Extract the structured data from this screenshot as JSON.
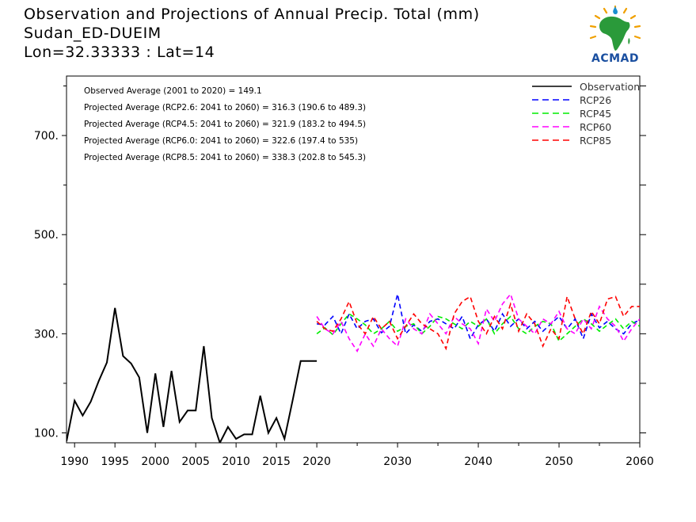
{
  "title": {
    "line1": "Observation and Projections of Annual Precip. Total (mm)",
    "line2": "Sudan_ED-DUEIM",
    "line3": "Lon=32.33333 : Lat=14"
  },
  "logo": {
    "text": "ACMAD"
  },
  "annotations": [
    "Observed Average (2001 to 2020) = 149.1",
    "Projected Average (RCP2.6: 2041 to 2060) = 316.3 (190.6 to 489.3)",
    "Projected Average (RCP4.5: 2041 to 2060) = 321.9 (183.2 to 494.5)",
    "Projected Average (RCP6.0: 2041 to 2060) = 322.6 (197.4 to 535)",
    "Projected Average (RCP8.5: 2041 to 2060) = 338.3 (202.8 to 545.3)"
  ],
  "chart_data": {
    "type": "line",
    "xlim": [
      1989,
      2060
    ],
    "ylim": [
      80,
      820
    ],
    "x_ticks": [
      1990,
      1995,
      2000,
      2005,
      2010,
      2015,
      2020,
      2030,
      2040,
      2050,
      2060
    ],
    "x_minor_ticks": [
      2025,
      2035,
      2045,
      2055
    ],
    "y_ticks": [
      100,
      300,
      500,
      700
    ],
    "y_tick_labels": [
      "100.",
      "300.",
      "500.",
      "700."
    ],
    "y_minor_ticks": [
      200,
      400,
      600,
      800
    ],
    "legend": {
      "position": "top-right"
    },
    "series": [
      {
        "name": "Observation",
        "color": "#000000",
        "style": "solid",
        "x": [
          1989,
          1990,
          1991,
          1992,
          1993,
          1994,
          1995,
          1996,
          1997,
          1998,
          1999,
          2000,
          2001,
          2002,
          2003,
          2004,
          2005,
          2006,
          2007,
          2008,
          2009,
          2010,
          2011,
          2012,
          2013,
          2014,
          2015,
          2016,
          2017,
          2018,
          2019,
          2020
        ],
        "y": [
          83,
          165,
          135,
          163,
          205,
          242,
          352,
          255,
          240,
          212,
          100,
          220,
          112,
          225,
          122,
          145,
          145,
          275,
          130,
          80,
          112,
          88,
          97,
          97,
          175,
          100,
          130,
          88,
          165,
          245,
          245,
          245
        ]
      },
      {
        "name": "RCP26",
        "color": "#0000ff",
        "style": "dashed",
        "x": [
          2020,
          2021,
          2022,
          2023,
          2024,
          2025,
          2026,
          2027,
          2028,
          2029,
          2030,
          2031,
          2032,
          2033,
          2034,
          2035,
          2036,
          2037,
          2038,
          2039,
          2040,
          2041,
          2042,
          2043,
          2044,
          2045,
          2046,
          2047,
          2048,
          2049,
          2050,
          2051,
          2052,
          2053,
          2054,
          2055,
          2056,
          2057,
          2058,
          2059,
          2060
        ],
        "y": [
          320,
          318,
          335,
          300,
          340,
          310,
          325,
          330,
          302,
          315,
          380,
          300,
          318,
          305,
          325,
          330,
          320,
          310,
          335,
          290,
          318,
          330,
          305,
          340,
          315,
          330,
          310,
          325,
          305,
          320,
          335,
          310,
          330,
          290,
          340,
          312,
          325,
          310,
          300,
          320,
          328
        ]
      },
      {
        "name": "RCP45",
        "color": "#00ee00",
        "style": "dashed",
        "x": [
          2020,
          2021,
          2022,
          2023,
          2024,
          2025,
          2026,
          2027,
          2028,
          2029,
          2030,
          2031,
          2032,
          2033,
          2034,
          2035,
          2036,
          2037,
          2038,
          2039,
          2040,
          2041,
          2042,
          2043,
          2044,
          2045,
          2046,
          2047,
          2048,
          2049,
          2050,
          2051,
          2052,
          2053,
          2054,
          2055,
          2056,
          2057,
          2058,
          2059,
          2060
        ],
        "y": [
          300,
          312,
          298,
          320,
          340,
          330,
          318,
          300,
          310,
          325,
          305,
          315,
          320,
          300,
          315,
          335,
          330,
          320,
          310,
          325,
          315,
          330,
          300,
          320,
          335,
          310,
          300,
          315,
          325,
          320,
          285,
          300,
          315,
          330,
          320,
          305,
          318,
          330,
          310,
          325,
          315
        ]
      },
      {
        "name": "RCP60",
        "color": "#ff00ff",
        "style": "dashed",
        "x": [
          2020,
          2021,
          2022,
          2023,
          2024,
          2025,
          2026,
          2027,
          2028,
          2029,
          2030,
          2031,
          2032,
          2033,
          2034,
          2035,
          2036,
          2037,
          2038,
          2039,
          2040,
          2041,
          2042,
          2043,
          2044,
          2045,
          2046,
          2047,
          2048,
          2049,
          2050,
          2051,
          2052,
          2053,
          2054,
          2055,
          2056,
          2057,
          2058,
          2059,
          2060
        ],
        "y": [
          335,
          310,
          300,
          325,
          290,
          265,
          300,
          275,
          310,
          290,
          275,
          330,
          310,
          300,
          340,
          320,
          300,
          335,
          320,
          310,
          280,
          350,
          325,
          360,
          380,
          330,
          315,
          300,
          330,
          320,
          345,
          310,
          300,
          330,
          310,
          355,
          330,
          315,
          285,
          310,
          330
        ]
      },
      {
        "name": "RCP85",
        "color": "#ff0000",
        "style": "dashed",
        "x": [
          2020,
          2021,
          2022,
          2023,
          2024,
          2025,
          2026,
          2027,
          2028,
          2029,
          2030,
          2031,
          2032,
          2033,
          2034,
          2035,
          2036,
          2037,
          2038,
          2039,
          2040,
          2041,
          2042,
          2043,
          2044,
          2045,
          2046,
          2047,
          2048,
          2049,
          2050,
          2051,
          2052,
          2053,
          2054,
          2055,
          2056,
          2057,
          2058,
          2059,
          2060
        ],
        "y": [
          325,
          310,
          305,
          330,
          365,
          320,
          300,
          335,
          310,
          325,
          290,
          315,
          340,
          320,
          310,
          300,
          270,
          340,
          365,
          375,
          325,
          300,
          335,
          310,
          360,
          305,
          340,
          320,
          275,
          310,
          290,
          375,
          330,
          300,
          345,
          320,
          370,
          375,
          335,
          355,
          355
        ]
      }
    ]
  }
}
